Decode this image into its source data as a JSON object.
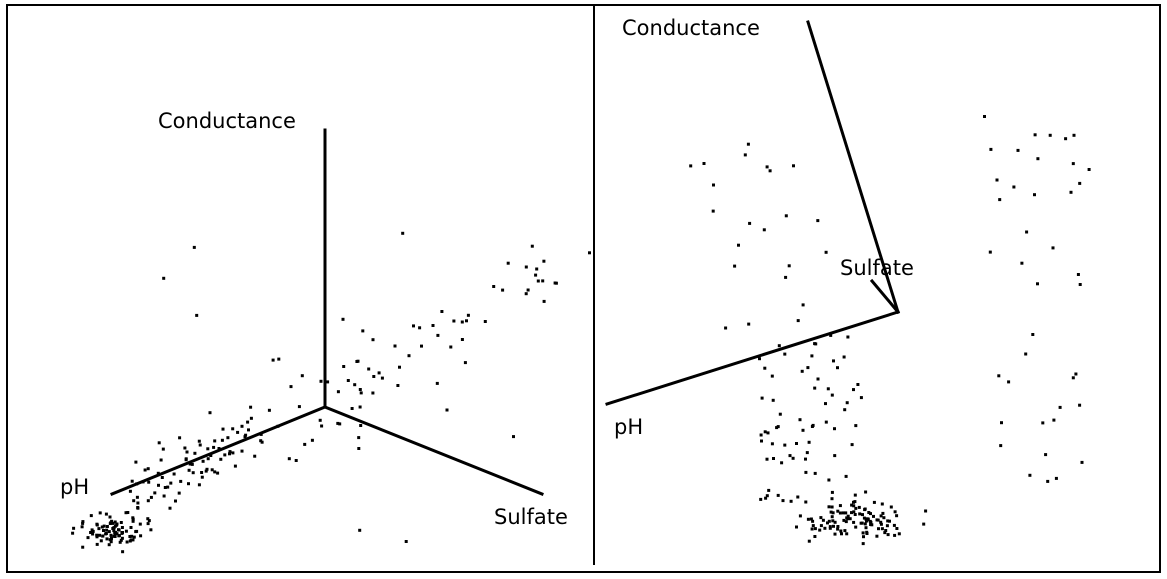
{
  "chart_data": [
    {
      "type": "scatter",
      "projection": "3d",
      "title": "",
      "axes": {
        "vertical": "Conductance",
        "left": "pH",
        "right": "Sulfate"
      },
      "grid": false,
      "legend": "none",
      "clusters": [
        {
          "region": "near pH axis tip",
          "density": "very dense",
          "count": 90
        },
        {
          "region": "along pH axis",
          "density": "medium",
          "count": 85
        },
        {
          "region": "near origin",
          "density": "sparse",
          "count": 25
        },
        {
          "region": "along Sulfate direction, upper right",
          "density": "sparse",
          "count": 45
        },
        {
          "region": "scattered outliers",
          "density": "very sparse",
          "count": 12
        }
      ]
    },
    {
      "type": "scatter",
      "projection": "3d-rotated",
      "title": "",
      "axes": {
        "vertical": "Conductance",
        "left": "pH",
        "center": "Sulfate"
      },
      "grid": false,
      "legend": "none",
      "clusters": [
        {
          "region": "bottom center",
          "density": "very dense",
          "count": 110
        },
        {
          "region": "center column",
          "density": "medium",
          "count": 70
        },
        {
          "region": "upper left scatter",
          "density": "sparse",
          "count": 22
        },
        {
          "region": "right column",
          "density": "sparse",
          "count": 40
        }
      ]
    }
  ]
}
